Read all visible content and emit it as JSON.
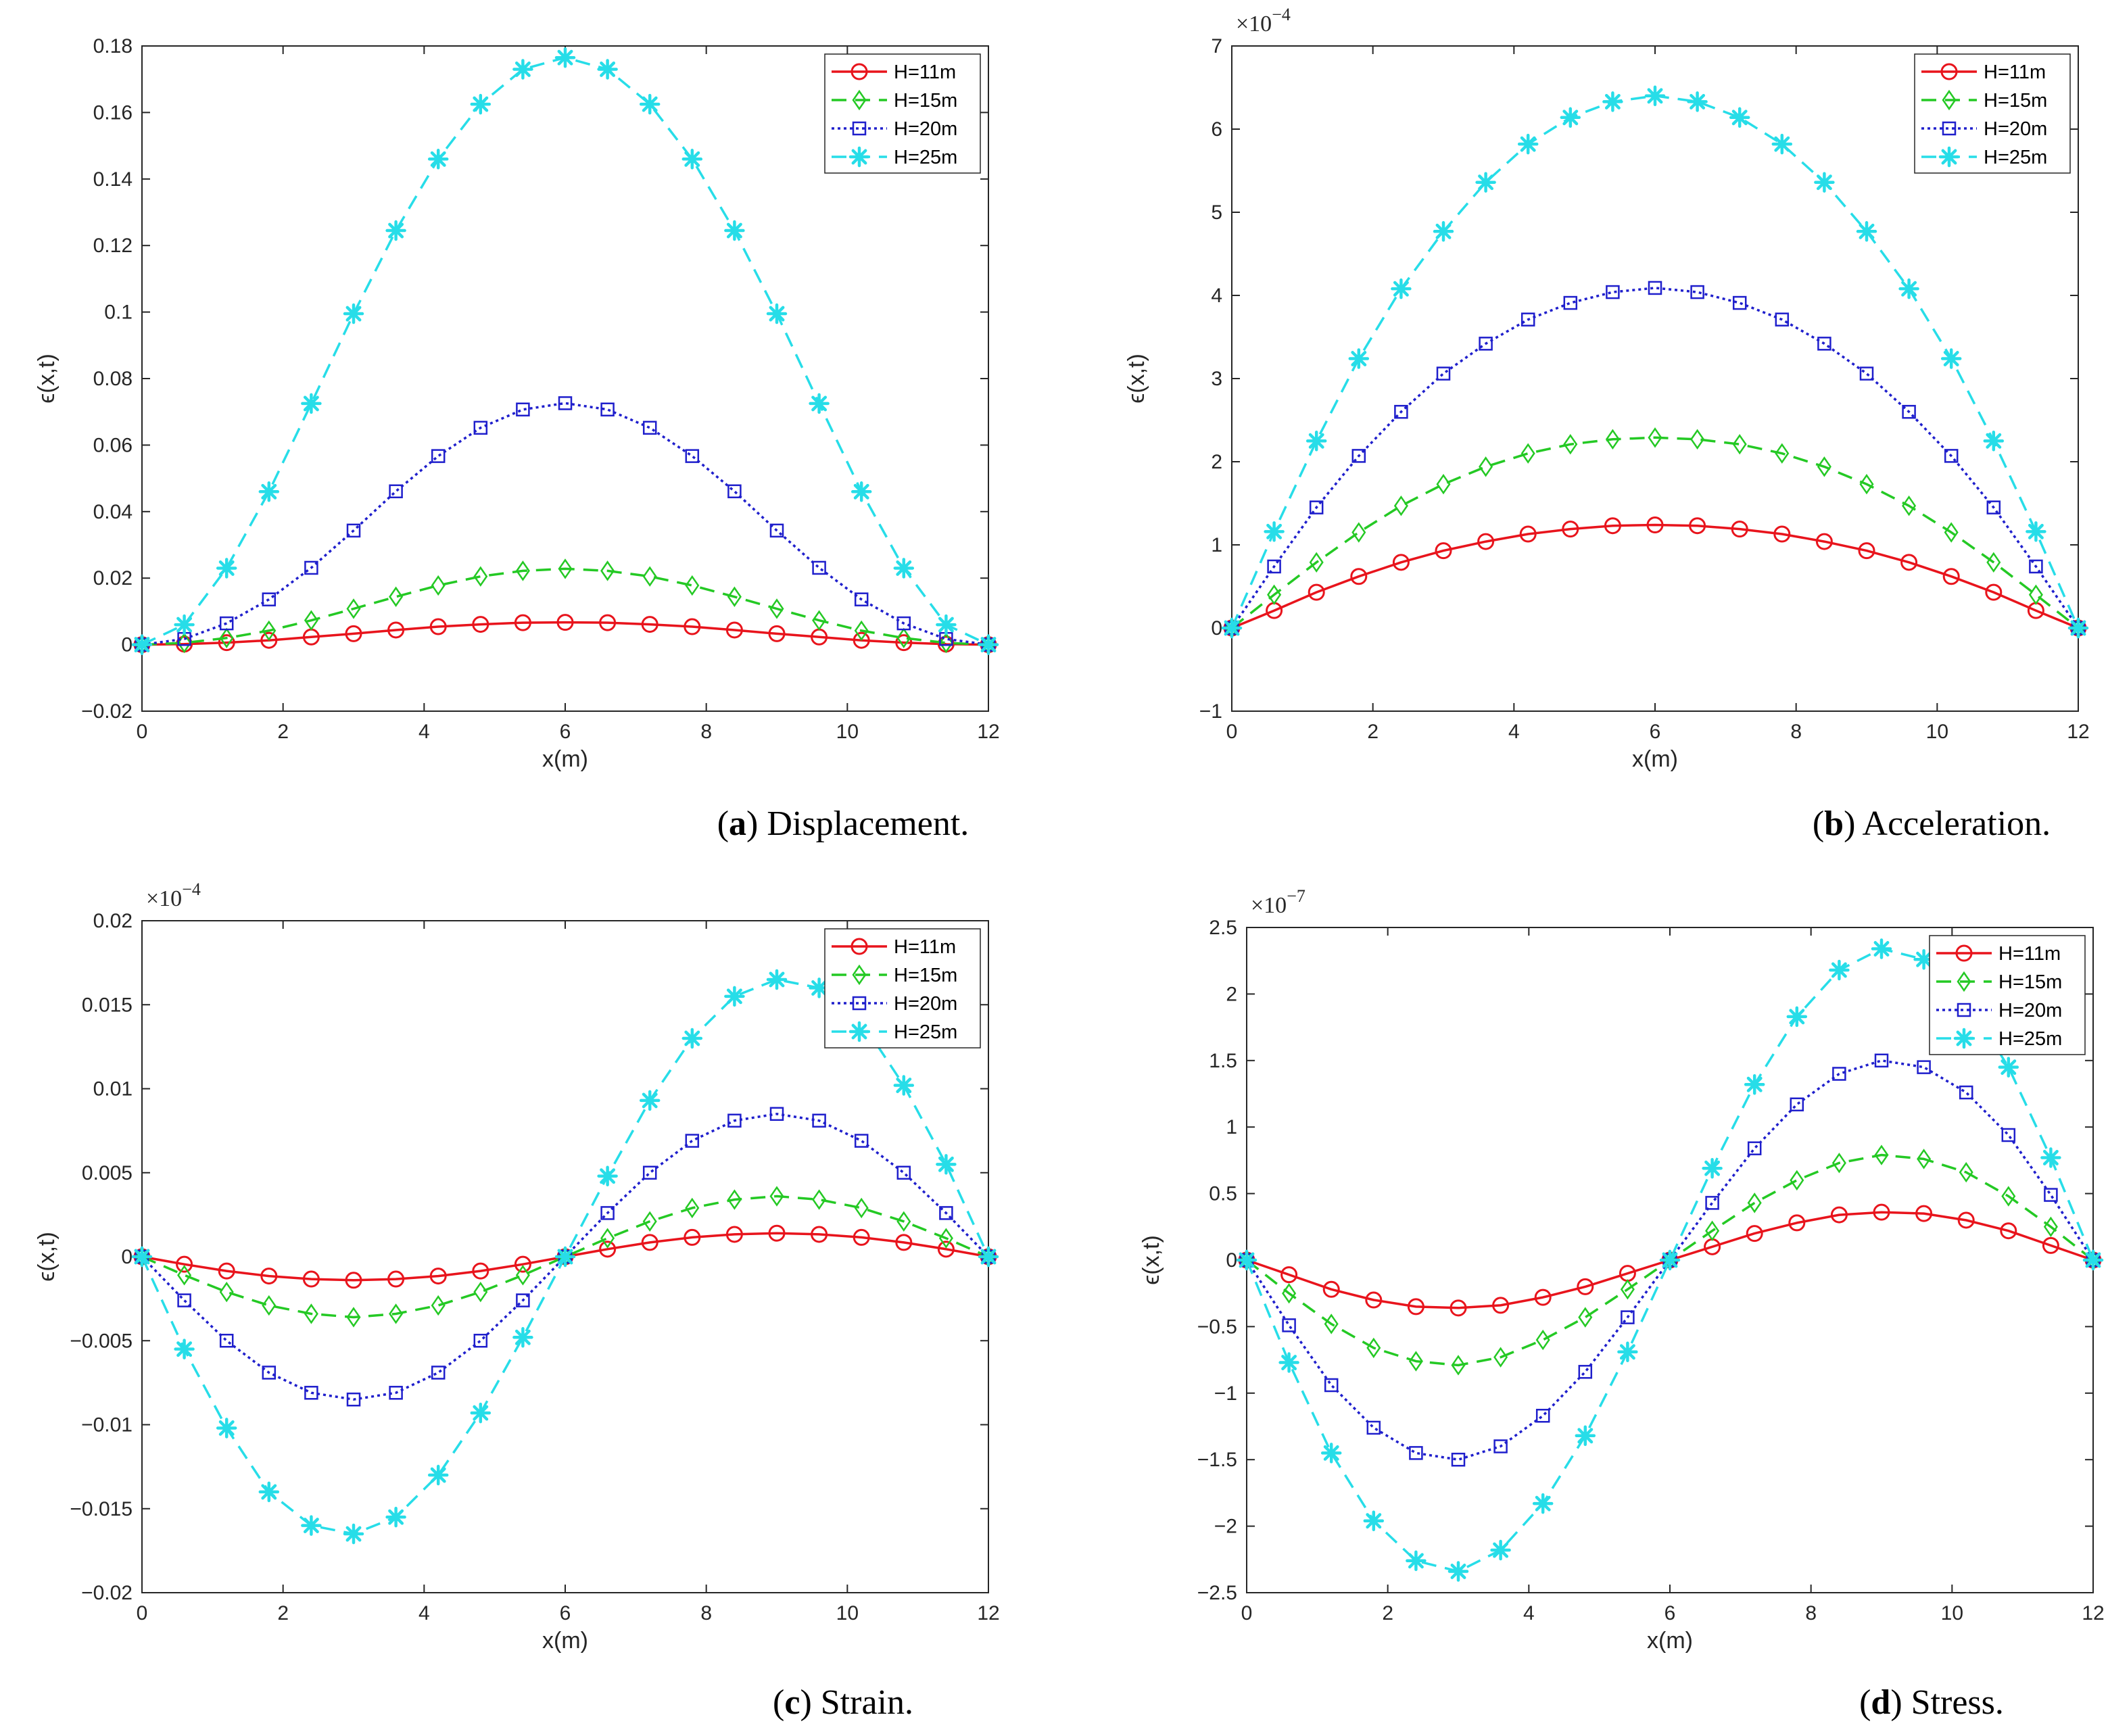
{
  "chart_data": [
    {
      "type": "line",
      "caption": {
        "letter": "a",
        "text": " Displacement."
      },
      "xlabel": "x(m)",
      "ylabel": "ϵ(x,t)",
      "exponent": "",
      "xlim": [
        0,
        12
      ],
      "ylim": [
        -0.02,
        0.18
      ],
      "xticks": [
        0,
        2,
        4,
        6,
        8,
        10,
        12
      ],
      "yticks": [
        -0.02,
        0,
        0.02,
        0.04,
        0.06,
        0.08,
        0.1,
        0.12,
        0.14,
        0.16,
        0.18
      ],
      "ytick_labels": [
        "-0.02",
        "0",
        "0.02",
        "0.04",
        "0.06",
        "0.08",
        "0.1",
        "0.12",
        "0.14",
        "0.16",
        "0.18"
      ],
      "legend_position": "top-right",
      "grid": false,
      "x": [
        0,
        0.6,
        1.2,
        1.8,
        2.4,
        3.0,
        3.6,
        4.2,
        4.8,
        5.4,
        6.0,
        6.6,
        7.2,
        7.8,
        8.4,
        9.0,
        9.6,
        10.2,
        10.8,
        11.4,
        12
      ],
      "series": [
        {
          "name": "H=11m",
          "color": "#e8141c",
          "dash": "solid",
          "marker": "circle",
          "values": [
            0,
            0.00016,
            0.0006,
            0.0013,
            0.0023,
            0.0033,
            0.0044,
            0.0054,
            0.0061,
            0.0066,
            0.0067,
            0.0066,
            0.0061,
            0.0054,
            0.0044,
            0.0033,
            0.0023,
            0.0013,
            0.0006,
            0.00016,
            0
          ]
        },
        {
          "name": "H=15m",
          "color": "#24c924",
          "dash": "dashed",
          "marker": "diamond",
          "values": [
            0,
            0.00053,
            0.002,
            0.0042,
            0.0073,
            0.0108,
            0.0144,
            0.0178,
            0.0205,
            0.0222,
            0.0228,
            0.0222,
            0.0205,
            0.0178,
            0.0144,
            0.0108,
            0.0073,
            0.0042,
            0.002,
            0.00053,
            0
          ]
        },
        {
          "name": "H=20m",
          "color": "#1f1fcc",
          "dash": "dotted",
          "marker": "square",
          "values": [
            0,
            0.0017,
            0.0064,
            0.0136,
            0.0231,
            0.0343,
            0.0461,
            0.0567,
            0.0652,
            0.0707,
            0.0726,
            0.0707,
            0.0652,
            0.0567,
            0.0461,
            0.0343,
            0.0231,
            0.0136,
            0.0064,
            0.0017,
            0
          ]
        },
        {
          "name": "H=25m",
          "color": "#27dde8",
          "dash": "dashed",
          "marker": "asterisk",
          "values": [
            0,
            0.006,
            0.023,
            0.046,
            0.0725,
            0.0995,
            0.1245,
            0.146,
            0.1625,
            0.173,
            0.1765,
            0.173,
            0.1625,
            0.146,
            0.1245,
            0.0995,
            0.0725,
            0.046,
            0.023,
            0.006,
            0
          ]
        }
      ]
    },
    {
      "type": "line",
      "caption": {
        "letter": "b",
        "text": " Acceleration."
      },
      "xlabel": "x(m)",
      "ylabel": "ϵ(x,t)",
      "exponent": "-4",
      "xlim": [
        0,
        12
      ],
      "ylim": [
        -1,
        7
      ],
      "xticks": [
        0,
        2,
        4,
        6,
        8,
        10,
        12
      ],
      "yticks": [
        -1,
        0,
        1,
        2,
        3,
        4,
        5,
        6,
        7
      ],
      "ytick_labels": [
        "-1",
        "0",
        "1",
        "2",
        "3",
        "4",
        "5",
        "6",
        "7"
      ],
      "legend_position": "top-right",
      "grid": false,
      "x": [
        0,
        0.6,
        1.2,
        1.8,
        2.4,
        3.0,
        3.6,
        4.2,
        4.8,
        5.4,
        6.0,
        6.6,
        7.2,
        7.8,
        8.4,
        9.0,
        9.6,
        10.2,
        10.8,
        11.4,
        12
      ],
      "series": [
        {
          "name": "H=11m",
          "color": "#e8141c",
          "dash": "solid",
          "marker": "circle",
          "values": [
            0,
            0.21,
            0.43,
            0.62,
            0.79,
            0.93,
            1.04,
            1.13,
            1.19,
            1.23,
            1.24,
            1.23,
            1.19,
            1.13,
            1.04,
            0.93,
            0.79,
            0.62,
            0.43,
            0.21,
            0
          ]
        },
        {
          "name": "H=15m",
          "color": "#24c924",
          "dash": "dashed",
          "marker": "diamond",
          "values": [
            0,
            0.4,
            0.79,
            1.15,
            1.47,
            1.73,
            1.94,
            2.1,
            2.21,
            2.27,
            2.29,
            2.27,
            2.21,
            2.1,
            1.94,
            1.73,
            1.47,
            1.15,
            0.79,
            0.4,
            0
          ]
        },
        {
          "name": "H=20m",
          "color": "#1f1fcc",
          "dash": "dotted",
          "marker": "square",
          "values": [
            0,
            0.74,
            1.45,
            2.07,
            2.6,
            3.06,
            3.42,
            3.71,
            3.91,
            4.04,
            4.09,
            4.04,
            3.91,
            3.71,
            3.42,
            3.06,
            2.6,
            2.07,
            1.45,
            0.74,
            0
          ]
        },
        {
          "name": "H=25m",
          "color": "#27dde8",
          "dash": "dashed",
          "marker": "asterisk",
          "values": [
            0,
            1.16,
            2.25,
            3.24,
            4.08,
            4.77,
            5.36,
            5.82,
            6.14,
            6.33,
            6.4,
            6.33,
            6.14,
            5.82,
            5.36,
            4.77,
            4.08,
            3.24,
            2.25,
            1.16,
            0
          ]
        }
      ]
    },
    {
      "type": "line",
      "caption": {
        "letter": "c",
        "text": " Strain."
      },
      "xlabel": "x(m)",
      "ylabel": "ϵ(x,t)",
      "exponent": "-4",
      "xlim": [
        0,
        12
      ],
      "ylim": [
        -0.02,
        0.02
      ],
      "xticks": [
        0,
        2,
        4,
        6,
        8,
        10,
        12
      ],
      "yticks": [
        -0.02,
        -0.015,
        -0.01,
        -0.005,
        0,
        0.005,
        0.01,
        0.015,
        0.02
      ],
      "ytick_labels": [
        "-0.02",
        "-0.015",
        "-0.01",
        "-0.005",
        "0",
        "0.005",
        "0.01",
        "0.015",
        "0.02"
      ],
      "legend_position": "top-right",
      "grid": false,
      "x": [
        0,
        0.6,
        1.2,
        1.8,
        2.4,
        3.0,
        3.6,
        4.2,
        4.8,
        5.4,
        6.0,
        6.6,
        7.2,
        7.8,
        8.4,
        9.0,
        9.6,
        10.2,
        10.8,
        11.4,
        12
      ],
      "series": [
        {
          "name": "H=11m",
          "color": "#e8141c",
          "dash": "solid",
          "marker": "circle",
          "values": [
            0,
            -0.00045,
            -0.00085,
            -0.00115,
            -0.00133,
            -0.0014,
            -0.00133,
            -0.00115,
            -0.00085,
            -0.00045,
            0,
            0.00045,
            0.00085,
            0.00115,
            0.00133,
            0.0014,
            0.00133,
            0.00115,
            0.00085,
            0.00045,
            0
          ]
        },
        {
          "name": "H=15m",
          "color": "#24c924",
          "dash": "dashed",
          "marker": "diamond",
          "values": [
            0,
            -0.0011,
            -0.0021,
            -0.0029,
            -0.0034,
            -0.0036,
            -0.0034,
            -0.0029,
            -0.0021,
            -0.0011,
            0,
            0.0011,
            0.0021,
            0.0029,
            0.0034,
            0.0036,
            0.0034,
            0.0029,
            0.0021,
            0.0011,
            0
          ]
        },
        {
          "name": "H=20m",
          "color": "#1f1fcc",
          "dash": "dotted",
          "marker": "square",
          "values": [
            0,
            -0.0026,
            -0.005,
            -0.0069,
            -0.0081,
            -0.0085,
            -0.0081,
            -0.0069,
            -0.005,
            -0.0026,
            0,
            0.0026,
            0.005,
            0.0069,
            0.0081,
            0.0085,
            0.0081,
            0.0069,
            0.005,
            0.0026,
            0
          ]
        },
        {
          "name": "H=25m",
          "color": "#27dde8",
          "dash": "dashed",
          "marker": "asterisk",
          "values": [
            0,
            -0.0055,
            -0.0102,
            -0.014,
            -0.016,
            -0.0165,
            -0.0155,
            -0.013,
            -0.0093,
            -0.0048,
            0,
            0.0048,
            0.0093,
            0.013,
            0.0155,
            0.0165,
            0.016,
            0.014,
            0.0102,
            0.0055,
            0
          ]
        }
      ]
    },
    {
      "type": "line",
      "caption": {
        "letter": "d",
        "text": " Stress."
      },
      "xlabel": "x(m)",
      "ylabel": "ϵ(x,t)",
      "exponent": "-7",
      "xlim": [
        0,
        12
      ],
      "ylim": [
        -2.5,
        2.5
      ],
      "xticks": [
        0,
        2,
        4,
        6,
        8,
        10,
        12
      ],
      "yticks": [
        -2.5,
        -2,
        -1.5,
        -1,
        -0.5,
        0,
        0.5,
        1,
        1.5,
        2,
        2.5
      ],
      "ytick_labels": [
        "-2.5",
        "-2",
        "-1.5",
        "-1",
        "-0.5",
        "0",
        "0.5",
        "1",
        "1.5",
        "2",
        "2.5"
      ],
      "legend_position": "top-right",
      "grid": false,
      "x": [
        0,
        0.6,
        1.2,
        1.8,
        2.4,
        3.0,
        3.6,
        4.2,
        4.8,
        5.4,
        6.0,
        6.6,
        7.2,
        7.8,
        8.4,
        9.0,
        9.6,
        10.2,
        10.8,
        11.4,
        12
      ],
      "series": [
        {
          "name": "H=11m",
          "color": "#e8141c",
          "dash": "solid",
          "marker": "circle",
          "values": [
            0,
            -0.11,
            -0.22,
            -0.3,
            -0.35,
            -0.36,
            -0.34,
            -0.28,
            -0.2,
            -0.1,
            0,
            0.1,
            0.2,
            0.28,
            0.34,
            0.36,
            0.35,
            0.3,
            0.22,
            0.11,
            0
          ]
        },
        {
          "name": "H=15m",
          "color": "#24c924",
          "dash": "dashed",
          "marker": "diamond",
          "values": [
            0,
            -0.25,
            -0.48,
            -0.66,
            -0.76,
            -0.79,
            -0.73,
            -0.6,
            -0.43,
            -0.22,
            0,
            0.22,
            0.43,
            0.6,
            0.73,
            0.79,
            0.76,
            0.66,
            0.48,
            0.25,
            0
          ]
        },
        {
          "name": "H=20m",
          "color": "#1f1fcc",
          "dash": "dotted",
          "marker": "square",
          "values": [
            0,
            -0.49,
            -0.94,
            -1.26,
            -1.45,
            -1.5,
            -1.4,
            -1.17,
            -0.84,
            -0.43,
            0,
            0.43,
            0.84,
            1.17,
            1.4,
            1.5,
            1.45,
            1.26,
            0.94,
            0.49,
            0
          ]
        },
        {
          "name": "H=25m",
          "color": "#27dde8",
          "dash": "dashed",
          "marker": "asterisk",
          "values": [
            0,
            -0.77,
            -1.45,
            -1.96,
            -2.26,
            -2.34,
            -2.18,
            -1.83,
            -1.32,
            -0.69,
            0,
            0.69,
            1.32,
            1.83,
            2.18,
            2.34,
            2.26,
            1.96,
            1.45,
            0.77,
            0
          ]
        }
      ]
    }
  ]
}
